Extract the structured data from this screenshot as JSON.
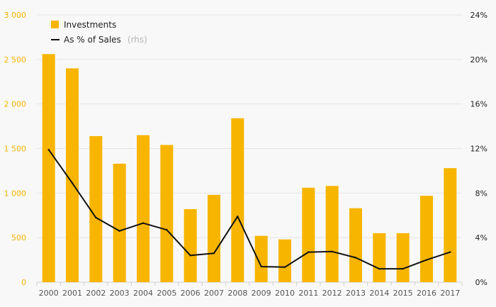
{
  "chart_data": {
    "type": "bar",
    "categories": [
      "2000",
      "2001",
      "2002",
      "2003",
      "2004",
      "2005",
      "2006",
      "2007",
      "2008",
      "2009",
      "2010",
      "2011",
      "2012",
      "2013",
      "2014",
      "2015",
      "2016",
      "2017"
    ],
    "series": [
      {
        "name": "Investments",
        "type": "bar",
        "axis": "left",
        "color": "#f7b500",
        "values": [
          2560,
          2400,
          1640,
          1330,
          1650,
          1540,
          820,
          980,
          1840,
          520,
          480,
          1060,
          1080,
          830,
          550,
          550,
          970,
          1280
        ]
      },
      {
        "name": "As % of Sales",
        "name_suffix": "(rhs)",
        "type": "line",
        "axis": "right",
        "color": "#111111",
        "values": [
          11.9,
          8.9,
          5.8,
          4.6,
          5.3,
          4.7,
          2.4,
          2.6,
          5.9,
          1.4,
          1.35,
          2.7,
          2.75,
          2.2,
          1.2,
          1.2,
          2.0,
          2.7
        ]
      }
    ],
    "y_left": {
      "ylim": [
        0,
        3000
      ],
      "ticks": [
        0,
        500,
        1000,
        1500,
        2000,
        2500,
        3000
      ],
      "tick_labels": [
        "0",
        "500",
        "1 000",
        "1 500",
        "2 000",
        "2 500",
        "3 000"
      ],
      "color": "#f5b400"
    },
    "y_right": {
      "ylim": [
        0,
        24
      ],
      "ticks": [
        0,
        4,
        8,
        12,
        16,
        20,
        24
      ],
      "tick_labels": [
        "0%",
        "4%",
        "8%",
        "12%",
        "16%",
        "20%",
        "24%"
      ]
    },
    "grid": true,
    "legend_position": "top-left",
    "title": "",
    "xlabel": "",
    "ylabel": ""
  }
}
